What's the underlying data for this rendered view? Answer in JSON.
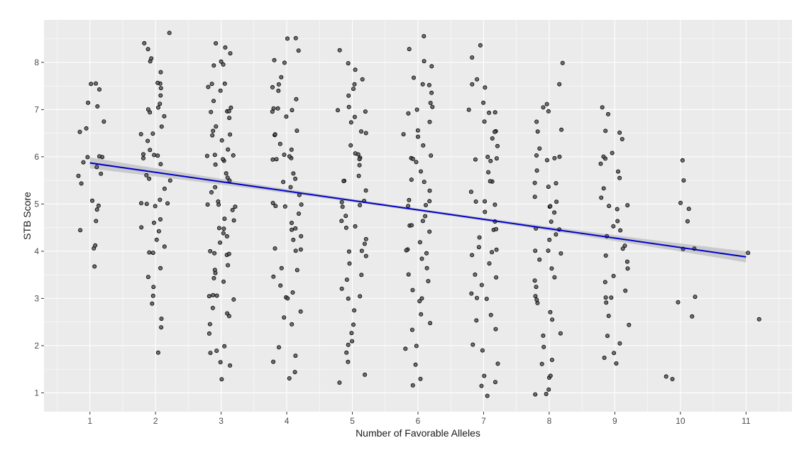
{
  "chart_data": {
    "type": "scatter",
    "xlabel": "Number of Favorable Alleles",
    "ylabel": "STB Score",
    "x_ticks": [
      1,
      2,
      3,
      4,
      5,
      6,
      7,
      8,
      9,
      10,
      11
    ],
    "y_ticks": [
      1,
      2,
      3,
      4,
      5,
      6,
      7,
      8
    ],
    "xlim": [
      0.3,
      11.7
    ],
    "ylim": [
      0.6,
      8.9
    ],
    "grid": true,
    "points_style": "jittered black points with grey fill",
    "groups": [
      {
        "x": 1,
        "y_values": [
          3.7,
          4.0,
          4.1,
          4.4,
          4.6,
          4.9,
          5.0,
          5.1,
          5.4,
          5.6,
          5.6,
          5.8,
          5.9,
          5.95,
          6.0,
          6.05,
          6.55,
          6.6,
          6.75,
          7.1,
          7.1,
          7.45,
          7.5,
          7.6
        ]
      },
      {
        "x": 2,
        "y_values": [
          1.9,
          2.4,
          2.6,
          2.9,
          3.0,
          3.3,
          3.5,
          3.7,
          4.0,
          4.0,
          4.1,
          4.2,
          4.4,
          4.5,
          4.6,
          4.7,
          4.9,
          5.0,
          5.0,
          5.0,
          5.1,
          5.3,
          5.5,
          5.5,
          5.6,
          5.8,
          6.0,
          6.0,
          6.0,
          6.0,
          6.1,
          6.3,
          6.5,
          6.5,
          6.6,
          6.8,
          7.0,
          7.0,
          7.0,
          7.1,
          7.3,
          7.5,
          7.5,
          7.6,
          7.8,
          8.0,
          8.1,
          8.3,
          8.4,
          8.6
        ]
      },
      {
        "x": 3,
        "y_values": [
          1.25,
          1.6,
          1.65,
          1.8,
          1.95,
          2.0,
          2.3,
          2.5,
          2.6,
          2.7,
          2.8,
          3.0,
          3.0,
          3.0,
          3.1,
          3.3,
          3.4,
          3.5,
          3.6,
          3.7,
          3.9,
          4.0,
          4.0,
          4.0,
          4.2,
          4.3,
          4.4,
          4.5,
          4.5,
          4.6,
          4.7,
          4.9,
          5.0,
          5.0,
          5.0,
          5.0,
          5.2,
          5.3,
          5.5,
          5.5,
          5.6,
          5.8,
          5.9,
          6.0,
          6.0,
          6.0,
          6.0,
          6.1,
          6.3,
          6.5,
          6.5,
          6.5,
          6.6,
          6.8,
          7.0,
          7.0,
          7.0,
          7.0,
          7.2,
          7.4,
          7.5,
          7.5,
          7.6,
          7.9,
          8.0,
          8.0,
          8.2,
          8.3,
          8.45
        ]
      },
      {
        "x": 4,
        "y_values": [
          1.3,
          1.45,
          1.6,
          1.75,
          2.0,
          2.4,
          2.6,
          2.7,
          3.0,
          3.0,
          3.1,
          3.3,
          3.5,
          3.6,
          3.7,
          4.0,
          4.0,
          4.0,
          4.2,
          4.3,
          4.5,
          4.5,
          4.6,
          4.8,
          5.0,
          5.0,
          5.0,
          5.0,
          5.2,
          5.3,
          5.5,
          5.5,
          5.7,
          5.9,
          6.0,
          6.0,
          6.0,
          6.0,
          6.2,
          6.3,
          6.5,
          6.5,
          6.6,
          6.8,
          7.0,
          7.0,
          7.0,
          7.0,
          7.2,
          7.4,
          7.5,
          7.5,
          7.7,
          8.0,
          8.1,
          8.3,
          8.45,
          8.55
        ]
      },
      {
        "x": 5,
        "y_values": [
          1.25,
          1.35,
          1.6,
          1.9,
          2.0,
          2.1,
          2.25,
          2.5,
          2.7,
          3.0,
          3.0,
          3.2,
          3.4,
          3.5,
          3.7,
          3.9,
          4.0,
          4.0,
          4.1,
          4.3,
          4.5,
          4.5,
          4.6,
          4.8,
          5.0,
          5.0,
          5.0,
          5.1,
          5.3,
          5.5,
          5.5,
          5.6,
          5.8,
          6.0,
          6.0,
          6.0,
          6.1,
          6.3,
          6.5,
          6.5,
          6.7,
          6.9,
          7.0,
          7.0,
          7.1,
          7.3,
          7.5,
          7.5,
          7.7,
          7.9,
          8.0,
          8.3
        ]
      },
      {
        "x": 6,
        "y_values": [
          1.1,
          1.25,
          1.55,
          1.9,
          2.0,
          2.3,
          2.5,
          2.7,
          3.0,
          3.0,
          3.2,
          3.4,
          3.5,
          3.6,
          3.8,
          4.0,
          4.0,
          4.0,
          4.2,
          4.4,
          4.5,
          4.5,
          4.6,
          4.8,
          5.0,
          5.0,
          5.0,
          5.1,
          5.3,
          5.5,
          5.5,
          5.7,
          5.9,
          6.0,
          6.0,
          6.0,
          6.2,
          6.4,
          6.5,
          6.5,
          6.7,
          6.9,
          7.0,
          7.0,
          7.2,
          7.4,
          7.5,
          7.5,
          7.7,
          7.9,
          8.0,
          8.3,
          8.5
        ]
      },
      {
        "x": 7,
        "y_values": [
          0.95,
          1.1,
          1.2,
          1.4,
          1.6,
          1.9,
          2.0,
          2.3,
          2.5,
          2.7,
          3.0,
          3.0,
          3.1,
          3.3,
          3.5,
          3.5,
          3.7,
          3.9,
          4.0,
          4.0,
          4.1,
          4.3,
          4.5,
          4.5,
          4.6,
          4.8,
          5.0,
          5.0,
          5.1,
          5.3,
          5.5,
          5.5,
          5.7,
          5.9,
          6.0,
          6.0,
          6.0,
          6.2,
          6.4,
          6.5,
          6.5,
          6.7,
          6.9,
          7.0,
          7.0,
          7.2,
          7.5,
          7.5,
          7.6,
          8.1,
          8.4
        ]
      },
      {
        "x": 8,
        "y_values": [
          0.95,
          1.0,
          1.1,
          1.3,
          1.4,
          1.6,
          1.7,
          2.0,
          2.2,
          2.3,
          2.5,
          2.7,
          2.9,
          3.0,
          3.0,
          3.2,
          3.4,
          3.5,
          3.6,
          3.8,
          4.0,
          4.0,
          4.0,
          4.2,
          4.4,
          4.5,
          4.5,
          4.6,
          4.8,
          5.0,
          5.0,
          5.0,
          5.2,
          5.4,
          5.5,
          5.5,
          5.7,
          5.9,
          6.0,
          6.0,
          6.0,
          6.2,
          6.5,
          6.6,
          6.8,
          7.0,
          7.0,
          7.1,
          7.55,
          8.0
        ]
      },
      {
        "x": 9,
        "y_values": [
          1.65,
          1.75,
          1.9,
          2.0,
          2.2,
          2.45,
          2.6,
          2.9,
          3.0,
          3.0,
          3.2,
          3.4,
          3.5,
          3.6,
          3.8,
          3.95,
          4.0,
          4.1,
          4.3,
          4.5,
          4.5,
          4.6,
          4.9,
          5.0,
          5.0,
          5.1,
          5.3,
          5.5,
          5.7,
          5.9,
          6.0,
          6.0,
          6.1,
          6.4,
          6.5,
          6.6,
          6.9,
          7.0
        ]
      },
      {
        "x": 10,
        "y_values": [
          1.25,
          1.4,
          2.6,
          2.95,
          3.0,
          4.0,
          4.0,
          4.6,
          4.95,
          5.05,
          5.55,
          5.95
        ]
      },
      {
        "x": 11,
        "y_values": [
          2.6,
          3.95
        ]
      }
    ],
    "trend_line": {
      "method": "linear fit",
      "color": "#0000cc",
      "band_color": "#bfbfbf",
      "x": [
        1,
        11
      ],
      "y": [
        5.87,
        3.88
      ]
    },
    "colors": {
      "panel_background": "#ebebeb",
      "grid_major": "#ffffff",
      "point_fill": "#595959",
      "point_stroke": "#000000"
    }
  }
}
